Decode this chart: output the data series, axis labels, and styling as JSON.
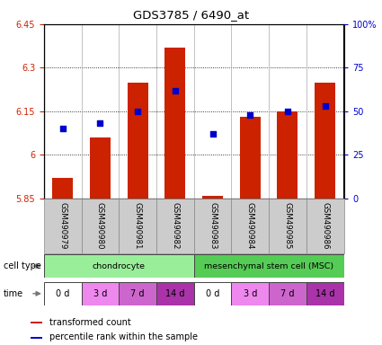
{
  "title": "GDS3785 / 6490_at",
  "samples": [
    "GSM490979",
    "GSM490980",
    "GSM490981",
    "GSM490982",
    "GSM490983",
    "GSM490984",
    "GSM490985",
    "GSM490986"
  ],
  "transformed_counts": [
    5.92,
    6.06,
    6.25,
    6.37,
    5.86,
    6.13,
    6.15,
    6.25
  ],
  "percentile_ranks": [
    40,
    43,
    50,
    62,
    37,
    48,
    50,
    53
  ],
  "ylim_left": [
    5.85,
    6.45
  ],
  "ylim_right": [
    0,
    100
  ],
  "yticks_left": [
    5.85,
    6.0,
    6.15,
    6.3,
    6.45
  ],
  "ytick_labels_left": [
    "5.85",
    "6",
    "6.15",
    "6.3",
    "6.45"
  ],
  "yticks_right": [
    0,
    25,
    50,
    75,
    100
  ],
  "ytick_labels_right": [
    "0",
    "25",
    "50",
    "75",
    "100%"
  ],
  "bar_color": "#cc2200",
  "dot_color": "#0000cc",
  "bar_bottom": 5.85,
  "cell_type_groups": [
    {
      "label": "chondrocyte",
      "start": 0,
      "end": 4,
      "color": "#99ee99"
    },
    {
      "label": "mesenchymal stem cell (MSC)",
      "start": 4,
      "end": 8,
      "color": "#55cc55"
    }
  ],
  "time_labels": [
    "0 d",
    "3 d",
    "7 d",
    "14 d",
    "0 d",
    "3 d",
    "7 d",
    "14 d"
  ],
  "time_colors": [
    "#ffffff",
    "#ee88ee",
    "#cc66cc",
    "#aa33aa",
    "#ffffff",
    "#ee88ee",
    "#cc66cc",
    "#aa33aa"
  ],
  "legend_red_label": "transformed count",
  "legend_blue_label": "percentile rank within the sample",
  "cell_type_label": "cell type",
  "time_label": "time",
  "ylabel_left_color": "#cc2200",
  "ylabel_right_color": "#0000cc",
  "bar_width": 0.55,
  "dot_size": 22,
  "sample_box_color": "#cccccc",
  "sample_box_edge": "#888888"
}
